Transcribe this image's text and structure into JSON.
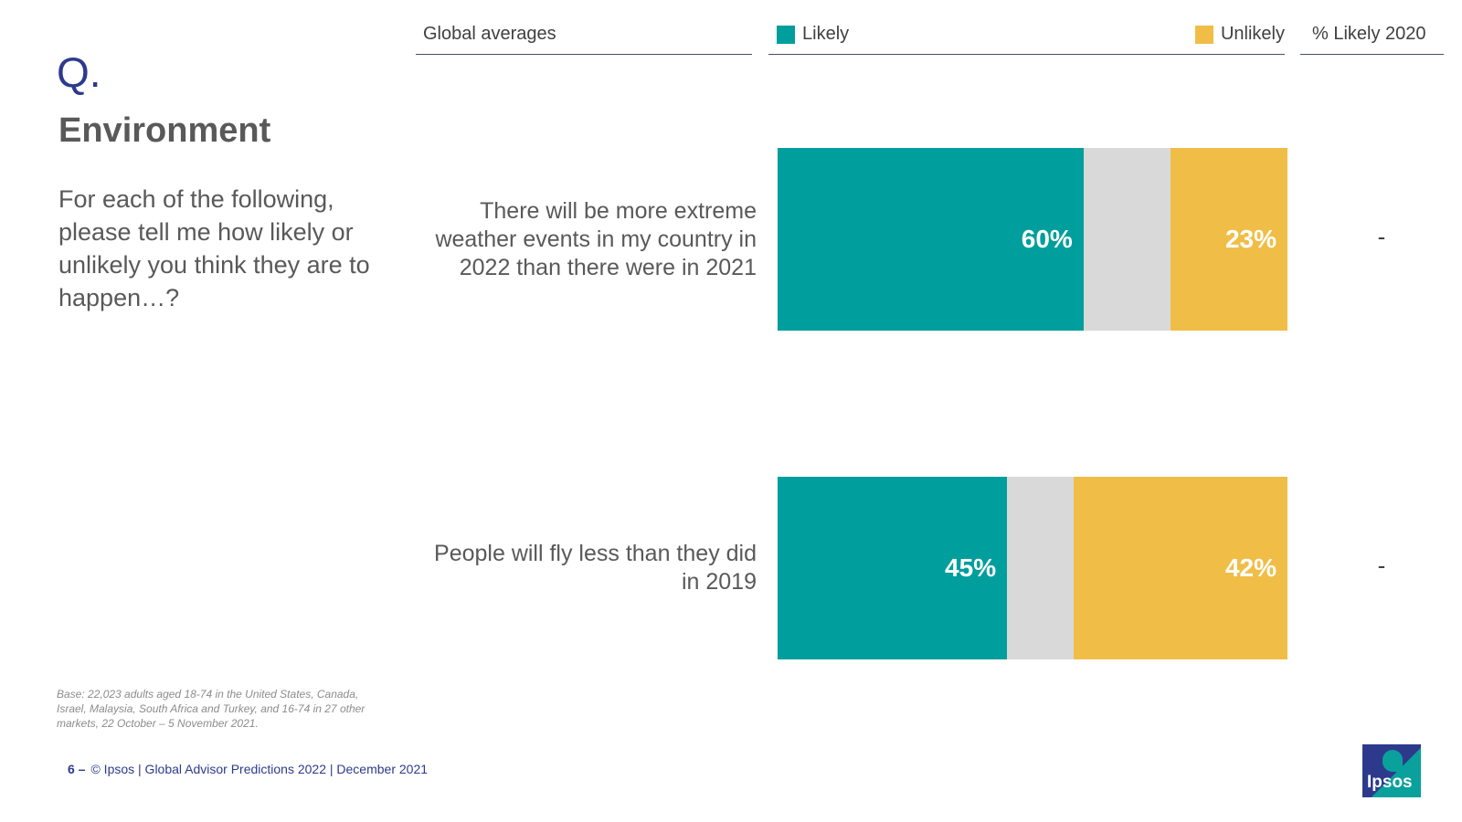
{
  "sidebar": {
    "q_mark": "Q.",
    "title": "Environment",
    "question": "For each of the following, please tell me how likely or unlikely you think they are to happen…?",
    "base_note": "Base: 22,023 adults aged 18-74 in the United States, Canada, Israel, Malaysia, South Africa and Turkey, and 16-74 in 27 other markets, 22 October – 5 November 2021."
  },
  "header": {
    "global_averages": "Global averages",
    "likely_2020": "% Likely 2020"
  },
  "footer": {
    "page_number": "6 –",
    "text": "© Ipsos | Global Advisor Predictions 2022 | December 2021"
  },
  "logo": {
    "text": "Ipsos"
  },
  "colors": {
    "likely": "#009e9c",
    "neutral": "#d9d9d9",
    "unlikely": "#f0be47"
  },
  "chart_data": {
    "type": "bar",
    "orientation": "horizontal",
    "stacked": true,
    "legend_position": "top",
    "legend": [
      {
        "name": "Likely",
        "color": "#009e9c"
      },
      {
        "name": "Unlikely",
        "color": "#f0be47"
      }
    ],
    "categories": [
      "There will be more extreme weather events in my country in 2022 than there were in 2021",
      "People will fly less than they did in 2019"
    ],
    "series": [
      {
        "name": "Likely",
        "values": [
          60,
          45
        ],
        "labels": [
          "60%",
          "45%"
        ]
      },
      {
        "name": "",
        "values": [
          17,
          13
        ],
        "labels": [
          "",
          ""
        ]
      },
      {
        "name": "Unlikely",
        "values": [
          23,
          42
        ],
        "labels": [
          "23%",
          "42%"
        ]
      }
    ],
    "likely_2020": [
      "-",
      "-"
    ],
    "xlim": [
      0,
      100
    ]
  }
}
